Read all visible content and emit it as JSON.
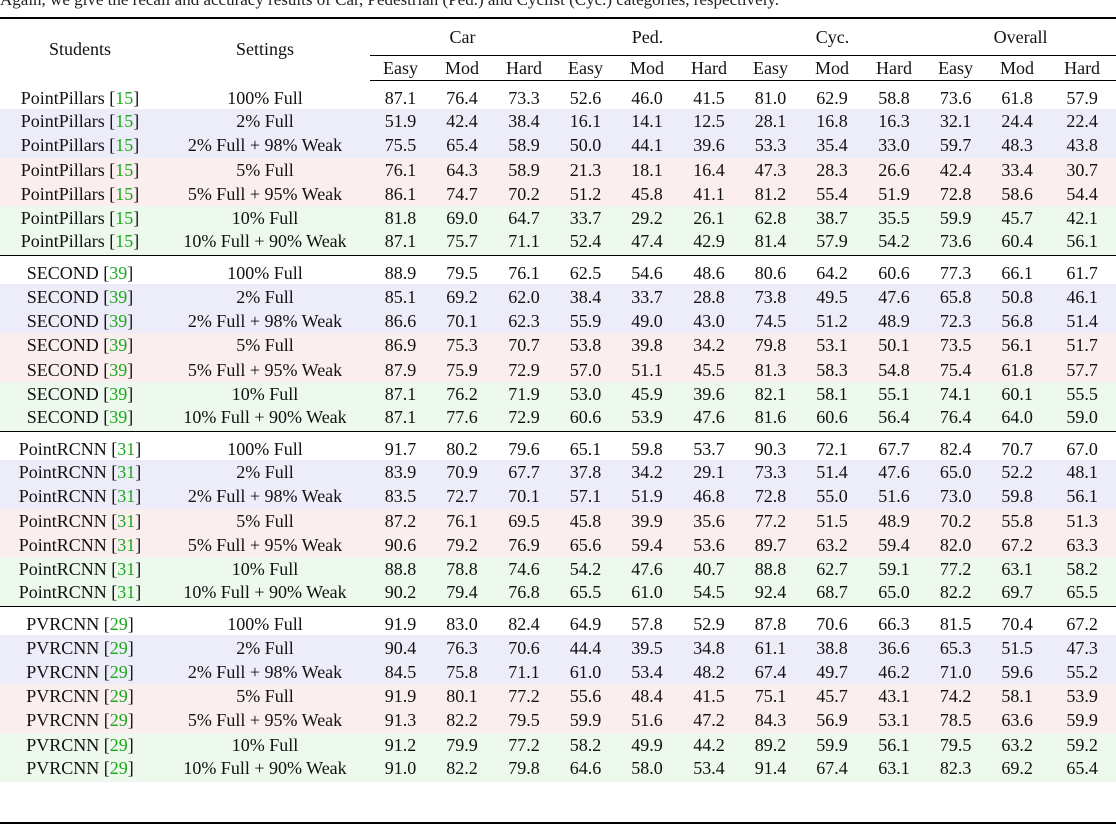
{
  "caption_partial": "Again, we give the recall and accuracy results of Car, Pedestrian (Ped.) and Cyclist (Cyc.) categories, respectively.",
  "header": {
    "students": "Students",
    "settings": "Settings",
    "groups": [
      "Car",
      "Ped.",
      "Cyc.",
      "Overall"
    ],
    "levels": [
      "Easy",
      "Mod",
      "Hard",
      "Easy",
      "Mod",
      "Hard",
      "Easy",
      "Mod",
      "Hard",
      "Easy",
      "Mod",
      "Hard"
    ]
  },
  "groups": [
    {
      "student": "PointPillars",
      "ref": "15",
      "rows": [
        {
          "setting": "100% Full",
          "color": "none",
          "values": [
            "87.1",
            "76.4",
            "73.3",
            "52.6",
            "46.0",
            "41.5",
            "81.0",
            "62.9",
            "58.8",
            "73.6",
            "61.8",
            "57.9"
          ]
        },
        {
          "setting": "2% Full",
          "color": "blue",
          "values": [
            "51.9",
            "42.4",
            "38.4",
            "16.1",
            "14.1",
            "12.5",
            "28.1",
            "16.8",
            "16.3",
            "32.1",
            "24.4",
            "22.4"
          ]
        },
        {
          "setting": "2% Full + 98% Weak",
          "color": "blue",
          "values": [
            "75.5",
            "65.4",
            "58.9",
            "50.0",
            "44.1",
            "39.6",
            "53.3",
            "35.4",
            "33.0",
            "59.7",
            "48.3",
            "43.8"
          ]
        },
        {
          "setting": "5% Full",
          "color": "red",
          "values": [
            "76.1",
            "64.3",
            "58.9",
            "21.3",
            "18.1",
            "16.4",
            "47.3",
            "28.3",
            "26.6",
            "42.4",
            "33.4",
            "30.7"
          ]
        },
        {
          "setting": "5% Full + 95% Weak",
          "color": "red",
          "values": [
            "86.1",
            "74.7",
            "70.2",
            "51.2",
            "45.8",
            "41.1",
            "81.2",
            "55.4",
            "51.9",
            "72.8",
            "58.6",
            "54.4"
          ]
        },
        {
          "setting": "10% Full",
          "color": "green",
          "values": [
            "81.8",
            "69.0",
            "64.7",
            "33.7",
            "29.2",
            "26.1",
            "62.8",
            "38.7",
            "35.5",
            "59.9",
            "45.7",
            "42.1"
          ]
        },
        {
          "setting": "10% Full + 90% Weak",
          "color": "green",
          "values": [
            "87.1",
            "75.7",
            "71.1",
            "52.4",
            "47.4",
            "42.9",
            "81.4",
            "57.9",
            "54.2",
            "73.6",
            "60.4",
            "56.1"
          ]
        }
      ]
    },
    {
      "student": "SECOND",
      "ref": "39",
      "rows": [
        {
          "setting": "100% Full",
          "color": "none",
          "values": [
            "88.9",
            "79.5",
            "76.1",
            "62.5",
            "54.6",
            "48.6",
            "80.6",
            "64.2",
            "60.6",
            "77.3",
            "66.1",
            "61.7"
          ]
        },
        {
          "setting": "2% Full",
          "color": "blue",
          "values": [
            "85.1",
            "69.2",
            "62.0",
            "38.4",
            "33.7",
            "28.8",
            "73.8",
            "49.5",
            "47.6",
            "65.8",
            "50.8",
            "46.1"
          ]
        },
        {
          "setting": "2% Full + 98% Weak",
          "color": "blue",
          "values": [
            "86.6",
            "70.1",
            "62.3",
            "55.9",
            "49.0",
            "43.0",
            "74.5",
            "51.2",
            "48.9",
            "72.3",
            "56.8",
            "51.4"
          ]
        },
        {
          "setting": "5% Full",
          "color": "red",
          "values": [
            "86.9",
            "75.3",
            "70.7",
            "53.8",
            "39.8",
            "34.2",
            "79.8",
            "53.1",
            "50.1",
            "73.5",
            "56.1",
            "51.7"
          ]
        },
        {
          "setting": "5% Full + 95% Weak",
          "color": "red",
          "values": [
            "87.9",
            "75.9",
            "72.9",
            "57.0",
            "51.1",
            "45.5",
            "81.3",
            "58.3",
            "54.8",
            "75.4",
            "61.8",
            "57.7"
          ]
        },
        {
          "setting": "10% Full",
          "color": "green",
          "values": [
            "87.1",
            "76.2",
            "71.9",
            "53.0",
            "45.9",
            "39.6",
            "82.1",
            "58.1",
            "55.1",
            "74.1",
            "60.1",
            "55.5"
          ]
        },
        {
          "setting": "10% Full + 90% Weak",
          "color": "green",
          "values": [
            "87.1",
            "77.6",
            "72.9",
            "60.6",
            "53.9",
            "47.6",
            "81.6",
            "60.6",
            "56.4",
            "76.4",
            "64.0",
            "59.0"
          ]
        }
      ]
    },
    {
      "student": "PointRCNN",
      "ref": "31",
      "rows": [
        {
          "setting": "100% Full",
          "color": "none",
          "values": [
            "91.7",
            "80.2",
            "79.6",
            "65.1",
            "59.8",
            "53.7",
            "90.3",
            "72.1",
            "67.7",
            "82.4",
            "70.7",
            "67.0"
          ]
        },
        {
          "setting": "2% Full",
          "color": "blue",
          "values": [
            "83.9",
            "70.9",
            "67.7",
            "37.8",
            "34.2",
            "29.1",
            "73.3",
            "51.4",
            "47.6",
            "65.0",
            "52.2",
            "48.1"
          ]
        },
        {
          "setting": "2% Full + 98% Weak",
          "color": "blue",
          "values": [
            "83.5",
            "72.7",
            "70.1",
            "57.1",
            "51.9",
            "46.8",
            "72.8",
            "55.0",
            "51.6",
            "73.0",
            "59.8",
            "56.1"
          ]
        },
        {
          "setting": "5% Full",
          "color": "red",
          "values": [
            "87.2",
            "76.1",
            "69.5",
            "45.8",
            "39.9",
            "35.6",
            "77.2",
            "51.5",
            "48.9",
            "70.2",
            "55.8",
            "51.3"
          ]
        },
        {
          "setting": "5% Full + 95% Weak",
          "color": "red",
          "values": [
            "90.6",
            "79.2",
            "76.9",
            "65.6",
            "59.4",
            "53.6",
            "89.7",
            "63.2",
            "59.4",
            "82.0",
            "67.2",
            "63.3"
          ]
        },
        {
          "setting": "10% Full",
          "color": "green",
          "values": [
            "88.8",
            "78.8",
            "74.6",
            "54.2",
            "47.6",
            "40.7",
            "88.8",
            "62.7",
            "59.1",
            "77.2",
            "63.1",
            "58.2"
          ]
        },
        {
          "setting": "10% Full + 90% Weak",
          "color": "green",
          "values": [
            "90.2",
            "79.4",
            "76.8",
            "65.5",
            "61.0",
            "54.5",
            "92.4",
            "68.7",
            "65.0",
            "82.2",
            "69.7",
            "65.5"
          ]
        }
      ]
    },
    {
      "student": "PVRCNN",
      "ref": "29",
      "rows": [
        {
          "setting": "100% Full",
          "color": "none",
          "values": [
            "91.9",
            "83.0",
            "82.4",
            "64.9",
            "57.8",
            "52.9",
            "87.8",
            "70.6",
            "66.3",
            "81.5",
            "70.4",
            "67.2"
          ]
        },
        {
          "setting": "2% Full",
          "color": "blue",
          "values": [
            "90.4",
            "76.3",
            "70.6",
            "44.4",
            "39.5",
            "34.8",
            "61.1",
            "38.8",
            "36.6",
            "65.3",
            "51.5",
            "47.3"
          ]
        },
        {
          "setting": "2% Full + 98% Weak",
          "color": "blue",
          "values": [
            "84.5",
            "75.8",
            "71.1",
            "61.0",
            "53.4",
            "48.2",
            "67.4",
            "49.7",
            "46.2",
            "71.0",
            "59.6",
            "55.2"
          ]
        },
        {
          "setting": "5% Full",
          "color": "red",
          "values": [
            "91.9",
            "80.1",
            "77.2",
            "55.6",
            "48.4",
            "41.5",
            "75.1",
            "45.7",
            "43.1",
            "74.2",
            "58.1",
            "53.9"
          ]
        },
        {
          "setting": "5% Full + 95% Weak",
          "color": "red",
          "values": [
            "91.3",
            "82.2",
            "79.5",
            "59.9",
            "51.6",
            "47.2",
            "84.3",
            "56.9",
            "53.1",
            "78.5",
            "63.6",
            "59.9"
          ]
        },
        {
          "setting": "10% Full",
          "color": "green",
          "values": [
            "91.2",
            "79.9",
            "77.2",
            "58.2",
            "49.9",
            "44.2",
            "89.2",
            "59.9",
            "56.1",
            "79.5",
            "63.2",
            "59.2"
          ]
        },
        {
          "setting": "10% Full + 90% Weak",
          "color": "green",
          "values": [
            "91.0",
            "82.2",
            "79.8",
            "64.6",
            "58.0",
            "53.4",
            "91.4",
            "67.4",
            "63.1",
            "82.3",
            "69.2",
            "65.4"
          ]
        }
      ]
    }
  ]
}
